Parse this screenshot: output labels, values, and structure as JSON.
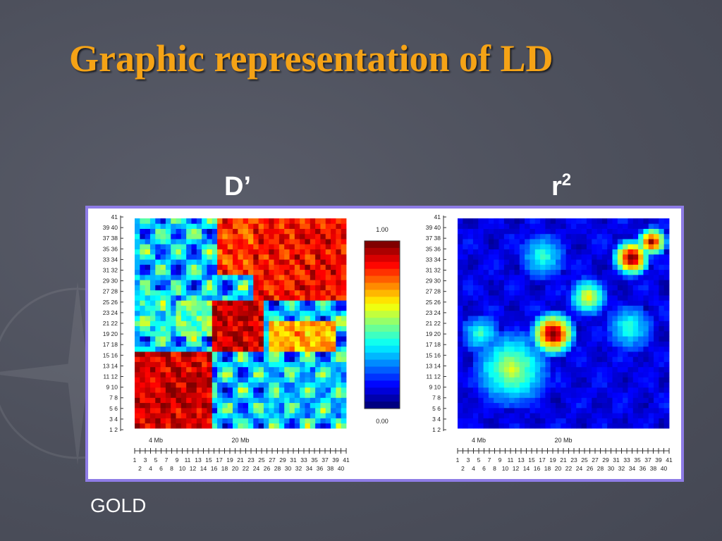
{
  "slide": {
    "title": "Graphic representation of LD",
    "footnote": "GOLD"
  },
  "colors": {
    "title": "#f5a316",
    "frame": "#8e7ce6",
    "background": "#4d505c"
  },
  "chart_data": [
    {
      "type": "heatmap",
      "title": "D’",
      "axis_labels_left": [
        "41",
        "39 40",
        "37 38",
        "35 36",
        "33 34",
        "31 32",
        "29 30",
        "27 28",
        "25 26",
        "23 24",
        "21 22",
        "19 20",
        "17 18",
        "15 16",
        "13 14",
        "11 12",
        "9 10",
        "7 8",
        "5 6",
        "3 4",
        "1 2"
      ],
      "distance_labels": [
        "4 Mb",
        "20 Mb"
      ],
      "bottom_ticks_odd": [
        "1",
        "3",
        "5",
        "7",
        "9",
        "11",
        "13",
        "15",
        "17",
        "19",
        "21",
        "23",
        "25",
        "27",
        "29",
        "31",
        "33",
        "35",
        "37",
        "39",
        "41"
      ],
      "bottom_ticks_even": [
        "2",
        "4",
        "6",
        "8",
        "10",
        "12",
        "14",
        "16",
        "18",
        "20",
        "22",
        "24",
        "26",
        "28",
        "30",
        "32",
        "34",
        "36",
        "38",
        "40"
      ],
      "colorbar": {
        "max_label": "1.00",
        "min_label": "0.00",
        "range": [
          0,
          1
        ]
      }
    },
    {
      "type": "heatmap",
      "title": "r2",
      "axis_labels_left": [
        "41",
        "39 40",
        "37 38",
        "35 36",
        "33 34",
        "31 32",
        "29 30",
        "27 28",
        "25 26",
        "23 24",
        "21 22",
        "19 20",
        "17 18",
        "15 16",
        "13 14",
        "11 12",
        "9 10",
        "7 8",
        "5 6",
        "3 4",
        "1 2"
      ],
      "distance_labels": [
        "4 Mb",
        "20 Mb"
      ],
      "bottom_ticks_odd": [
        "1",
        "3",
        "5",
        "7",
        "9",
        "11",
        "13",
        "15",
        "17",
        "19",
        "21",
        "23",
        "25",
        "27",
        "29",
        "31",
        "33",
        "35",
        "37",
        "39",
        "41"
      ],
      "bottom_ticks_even": [
        "2",
        "4",
        "6",
        "8",
        "10",
        "12",
        "14",
        "16",
        "18",
        "20",
        "22",
        "24",
        "26",
        "28",
        "30",
        "32",
        "34",
        "36",
        "38",
        "40"
      ]
    }
  ]
}
